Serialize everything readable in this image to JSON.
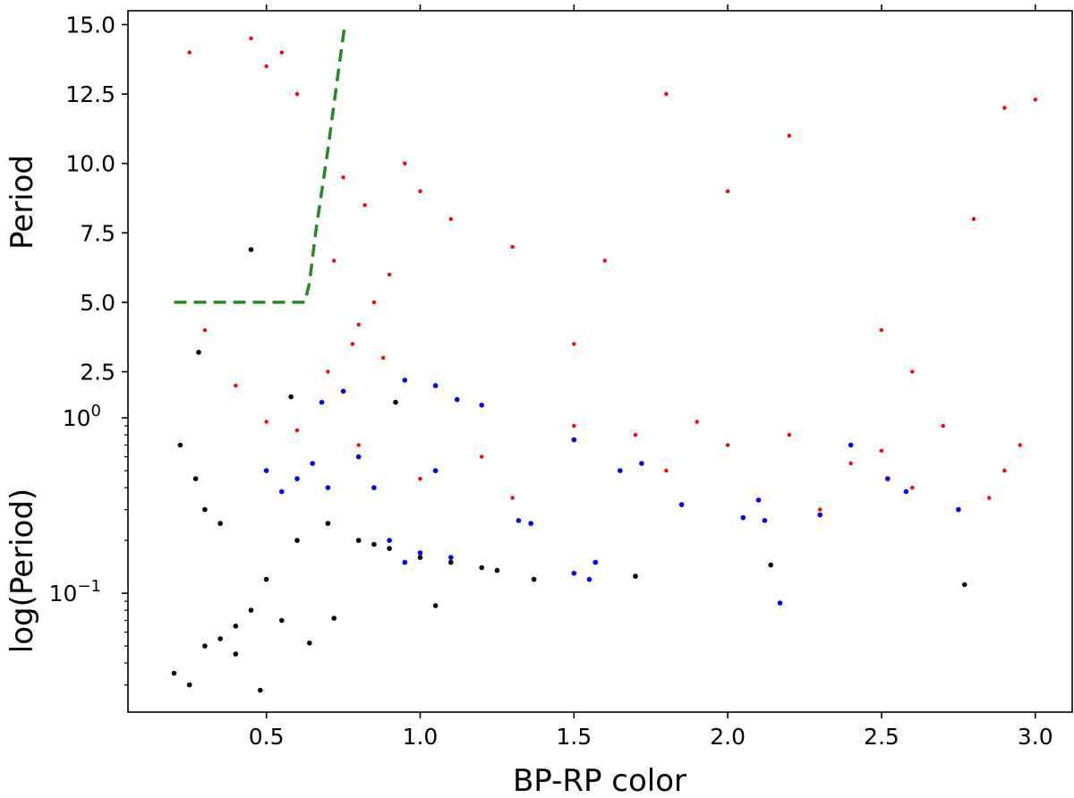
{
  "chart_data": {
    "type": "scatter",
    "layout": "two stacked panels sharing the x axis (linear top, log bottom)",
    "xlabel": "BP-RP color",
    "xlim": [
      0.05,
      3.12
    ],
    "xticks": [
      0.5,
      1.0,
      1.5,
      2.0,
      2.5,
      3.0
    ],
    "xtick_labels": [
      "0.5",
      "1.0",
      "1.5",
      "2.0",
      "2.5",
      "3.0"
    ],
    "series_colors": {
      "red": "#ff0000",
      "blue": "#0000ff",
      "black": "#000000",
      "boundary": "#228b22"
    },
    "panels": [
      {
        "id": "top",
        "ylabel": "Period",
        "yscale": "linear",
        "ylim": [
          1.1,
          15.5
        ],
        "yticks": [
          2.5,
          5.0,
          7.5,
          10.0,
          12.5,
          15.0
        ],
        "ytick_labels": [
          "2.5",
          "5.0",
          "7.5",
          "10.0",
          "12.5",
          "15.0"
        ],
        "boundary_line": {
          "style": "dashed",
          "color": "#228b22",
          "x": [
            0.2,
            0.625,
            0.64,
            0.66,
            0.7,
            0.74,
            0.755
          ],
          "y": [
            5.0,
            5.0,
            5.7,
            7.5,
            10.5,
            13.8,
            15.0
          ]
        },
        "series": [
          {
            "color": "#ff0000",
            "points": [
              [
                0.8,
                4.2
              ],
              [
                0.85,
                5.0
              ],
              [
                0.78,
                3.5
              ],
              [
                0.9,
                6.0
              ],
              [
                0.82,
                8.5
              ],
              [
                0.75,
                9.5
              ],
              [
                0.95,
                10.0
              ],
              [
                0.7,
                2.5
              ],
              [
                0.72,
                6.5
              ],
              [
                0.88,
                3.0
              ],
              [
                0.55,
                14.0
              ],
              [
                0.5,
                13.5
              ],
              [
                0.6,
                12.5
              ],
              [
                0.45,
                14.5
              ],
              [
                1.0,
                9.0
              ],
              [
                1.1,
                8.0
              ],
              [
                1.3,
                7.0
              ],
              [
                1.6,
                6.5
              ],
              [
                2.0,
                9.0
              ],
              [
                2.5,
                4.0
              ],
              [
                2.9,
                12.0
              ],
              [
                0.3,
                4.0
              ],
              [
                0.25,
                14.0
              ],
              [
                3.0,
                12.3
              ],
              [
                2.6,
                2.5
              ],
              [
                1.8,
                12.5
              ],
              [
                2.2,
                11.0
              ],
              [
                0.4,
                2.0
              ],
              [
                1.5,
                3.5
              ],
              [
                2.8,
                8.0
              ]
            ]
          },
          {
            "color": "#0000ff",
            "points": [
              [
                0.95,
                2.2
              ],
              [
                1.05,
                2.0
              ],
              [
                1.2,
                1.3
              ],
              [
                0.75,
                1.8
              ],
              [
                1.12,
                1.5
              ],
              [
                0.68,
                1.4
              ]
            ]
          },
          {
            "color": "#000000",
            "points": [
              [
                0.28,
                3.2
              ],
              [
                0.45,
                6.9
              ],
              [
                0.58,
                1.6
              ],
              [
                0.92,
                1.4
              ]
            ]
          }
        ]
      },
      {
        "id": "bottom",
        "ylabel": "log(Period)",
        "yscale": "log",
        "ylim": [
          0.021,
          1.1
        ],
        "yticks": [
          1.0,
          0.1
        ],
        "ytick_labels": [
          "10^0",
          "10^-1"
        ],
        "series": [
          {
            "color": "#ff0000",
            "points": [
              [
                0.6,
                0.85
              ],
              [
                1.2,
                0.6
              ],
              [
                1.5,
                0.9
              ],
              [
                2.0,
                0.7
              ],
              [
                2.4,
                0.55
              ],
              [
                2.9,
                0.5
              ],
              [
                1.8,
                0.5
              ],
              [
                0.8,
                0.7
              ],
              [
                2.7,
                0.9
              ],
              [
                1.0,
                0.45
              ],
              [
                1.3,
                0.35
              ],
              [
                2.2,
                0.8
              ],
              [
                0.5,
                0.95
              ],
              [
                2.6,
                0.4
              ],
              [
                1.7,
                0.8
              ],
              [
                2.95,
                0.7
              ],
              [
                2.3,
                0.3
              ],
              [
                1.9,
                0.95
              ],
              [
                2.5,
                0.65
              ],
              [
                2.85,
                0.35
              ]
            ]
          },
          {
            "color": "#0000ff",
            "points": [
              [
                1.5,
                0.75
              ],
              [
                2.4,
                0.7
              ],
              [
                2.52,
                0.45
              ],
              [
                2.58,
                0.38
              ],
              [
                2.1,
                0.34
              ],
              [
                2.05,
                0.27
              ],
              [
                2.12,
                0.26
              ],
              [
                1.85,
                0.32
              ],
              [
                2.3,
                0.28
              ],
              [
                2.75,
                0.3
              ],
              [
                1.32,
                0.26
              ],
              [
                1.36,
                0.25
              ],
              [
                1.57,
                0.15
              ],
              [
                1.5,
                0.13
              ],
              [
                1.55,
                0.12
              ],
              [
                2.17,
                0.088
              ],
              [
                1.65,
                0.5
              ],
              [
                1.72,
                0.55
              ],
              [
                0.5,
                0.5
              ],
              [
                0.7,
                0.4
              ],
              [
                0.9,
                0.2
              ],
              [
                1.0,
                0.17
              ],
              [
                1.1,
                0.16
              ],
              [
                0.8,
                0.6
              ],
              [
                0.6,
                0.45
              ],
              [
                0.65,
                0.55
              ],
              [
                0.85,
                0.4
              ],
              [
                1.05,
                0.5
              ],
              [
                0.55,
                0.38
              ],
              [
                0.95,
                0.15
              ]
            ]
          },
          {
            "color": "#000000",
            "points": [
              [
                0.2,
                0.035
              ],
              [
                0.25,
                0.03
              ],
              [
                0.3,
                0.05
              ],
              [
                0.35,
                0.055
              ],
              [
                0.4,
                0.045
              ],
              [
                0.45,
                0.08
              ],
              [
                0.5,
                0.12
              ],
              [
                0.6,
                0.2
              ],
              [
                0.7,
                0.25
              ],
              [
                0.8,
                0.2
              ],
              [
                0.9,
                0.18
              ],
              [
                1.0,
                0.16
              ],
              [
                1.1,
                0.15
              ],
              [
                1.2,
                0.14
              ],
              [
                0.48,
                0.028
              ],
              [
                0.64,
                0.052
              ],
              [
                0.72,
                0.072
              ],
              [
                1.05,
                0.085
              ],
              [
                1.37,
                0.12
              ],
              [
                1.7,
                0.125
              ],
              [
                2.14,
                0.145
              ],
              [
                2.77,
                0.112
              ],
              [
                0.3,
                0.3
              ],
              [
                0.22,
                0.7
              ],
              [
                0.27,
                0.45
              ],
              [
                0.35,
                0.25
              ],
              [
                0.4,
                0.065
              ],
              [
                0.55,
                0.07
              ],
              [
                0.85,
                0.19
              ],
              [
                1.25,
                0.135
              ]
            ]
          }
        ]
      }
    ]
  }
}
